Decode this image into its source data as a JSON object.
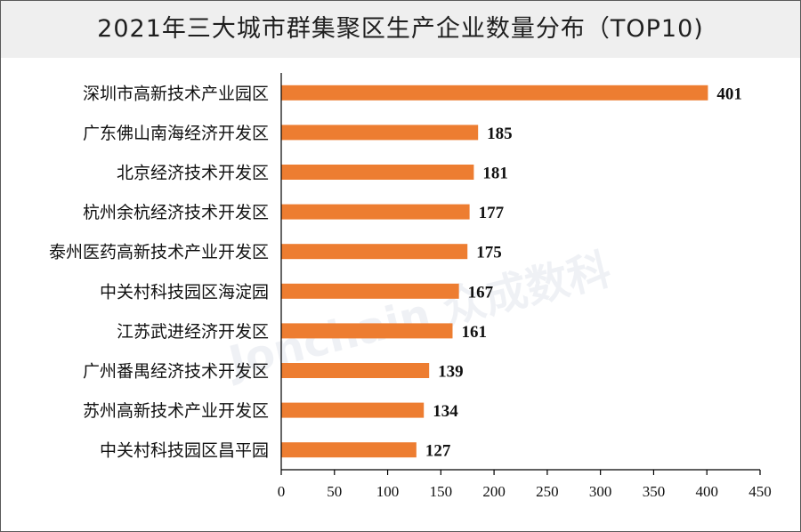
{
  "title": "2021年三大城市群集聚区生产企业数量分布（TOP10)",
  "watermark": "Jonchain 众成数科",
  "colors": {
    "bar": "#ED7D31",
    "axis": "#000000",
    "title_bg": "#EFEFEF"
  },
  "chart_data": {
    "type": "bar",
    "orientation": "horizontal",
    "title": "2021年三大城市群集聚区生产企业数量分布（TOP10)",
    "categories": [
      "深圳市高新技术产业园区",
      "广东佛山南海经济开发区",
      "北京经济技术开发区",
      "杭州余杭经济技术开发区",
      "泰州医药高新技术产业开发区",
      "中关村科技园区海淀园",
      "江苏武进经济开发区",
      "广州番禺经济技术开发区",
      "苏州高新技术产业开发区",
      "中关村科技园区昌平园"
    ],
    "values": [
      401,
      185,
      181,
      177,
      175,
      167,
      161,
      139,
      134,
      127
    ],
    "xlim": [
      0,
      450
    ],
    "xticks": [
      "0",
      "50",
      "100",
      "150",
      "200",
      "250",
      "300",
      "350",
      "400",
      "450"
    ],
    "grid": false,
    "legend": "none"
  }
}
